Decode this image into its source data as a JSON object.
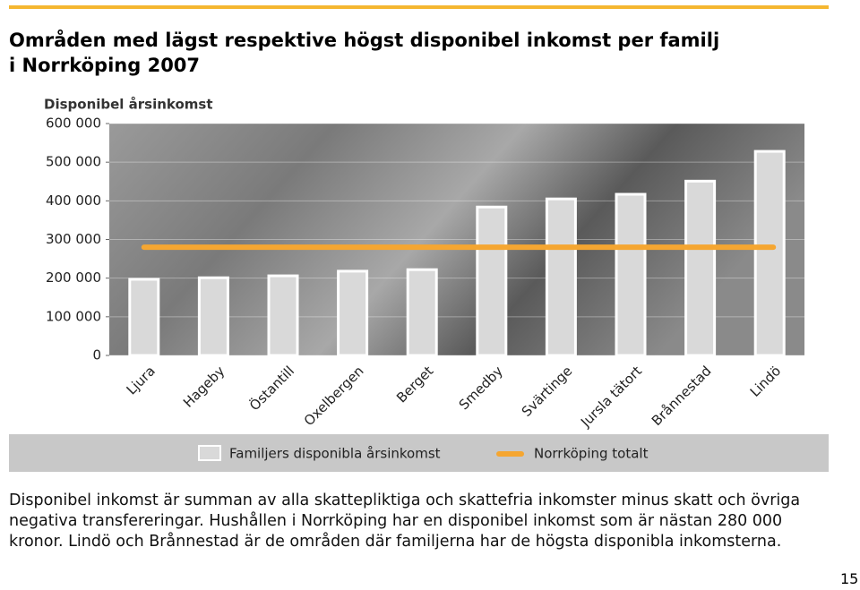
{
  "chart_data": {
    "type": "bar",
    "title": [
      "Områden med lägst respektive högst disponibel inkomst per familj",
      "i Norrköping 2007"
    ],
    "y_label": "Disponibel årsinkomst",
    "categories": [
      "Ljura",
      "Hageby",
      "Östantill",
      "Oxelbergen",
      "Berget",
      "Smedby",
      "Svärtinge",
      "Jursla tätort",
      "Brånnestad",
      "Lindö"
    ],
    "series": [
      {
        "name": "Familjers disponibla årsinkomst",
        "color": "#d9d9d9",
        "values": [
          197000,
          201000,
          206000,
          218000,
          222000,
          384000,
          405000,
          417000,
          451000,
          528000
        ]
      }
    ],
    "reference_line": {
      "name": "Norrköping totalt",
      "value": 280000,
      "color": "#f5a631"
    },
    "ylim": [
      0,
      600000
    ],
    "yticks": [
      0,
      {
        "value": 100000,
        "label": "100 000"
      },
      {
        "value": 200000,
        "label": "200 000"
      },
      {
        "value": 300000,
        "label": "300 000"
      },
      {
        "value": 400000,
        "label": "400 000"
      },
      {
        "value": 500000,
        "label": "500 000"
      },
      {
        "value": 600000,
        "label": "600 000"
      }
    ],
    "grid": true
  },
  "text": "Disponibel inkomst är summan av alla skattepliktiga och skattefria inkomster minus skatt och övriga negativa transfereringar. Hushållen i Norrköping har en disponibel inkomst som är nästan 280 000 kronor. Lindö och Brånnestad är de områden där familjerna har de högsta disponibla inkomsterna.",
  "page_number": "15"
}
